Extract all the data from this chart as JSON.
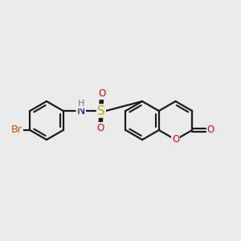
{
  "bg_color": "#ebebeb",
  "bond_color": "#1a1a1a",
  "bond_width": 1.6,
  "atom_colors": {
    "Br": "#cc5500",
    "N": "#1111cc",
    "H": "#777777",
    "S": "#bbaa00",
    "O": "#cc1111",
    "C": "#1a1a1a"
  },
  "font_size": 8.5,
  "fig_width": 3.0,
  "fig_height": 3.0,
  "dpi": 100,
  "xlim": [
    -3.8,
    4.2
  ],
  "ylim": [
    -2.2,
    2.2
  ]
}
